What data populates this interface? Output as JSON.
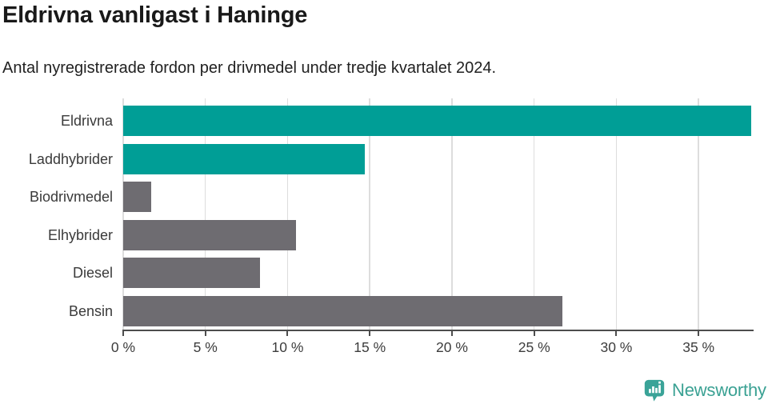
{
  "title": "Eldrivna vanligast i Haninge",
  "subtitle": "Antal nyregistrerade fordon per drivmedel under tredje kvartalet 2024.",
  "chart_data": {
    "type": "bar",
    "orientation": "horizontal",
    "title": "Eldrivna vanligast i Haninge",
    "subtitle": "Antal nyregistrerade fordon per drivmedel under tredje kvartalet 2024.",
    "categories": [
      "Eldrivna",
      "Laddhybrider",
      "Biodrivmedel",
      "Elhybrider",
      "Diesel",
      "Bensin"
    ],
    "values": [
      38.2,
      14.7,
      1.7,
      10.5,
      8.3,
      26.7
    ],
    "unit": "%",
    "bar_colors": [
      "#009e96",
      "#009e96",
      "#6e6c71",
      "#6e6c71",
      "#6e6c71",
      "#6e6c71"
    ],
    "highlight_color": "#009e96",
    "base_color": "#6e6c71",
    "xlabel": "",
    "ylabel": "",
    "xlim": [
      0,
      38.3
    ],
    "x_ticks": [
      0,
      5,
      10,
      15,
      20,
      25,
      30,
      35
    ],
    "x_tick_labels": [
      "0 %",
      "5 %",
      "10 %",
      "15 %",
      "20 %",
      "25 %",
      "30 %",
      "35 %"
    ],
    "grid": "vertical-light",
    "legend": "none"
  },
  "footer": {
    "brand": "Newsworthy",
    "brand_color": "#3aa193",
    "icon": "newsworthy-speech-bubble-chart-icon"
  }
}
